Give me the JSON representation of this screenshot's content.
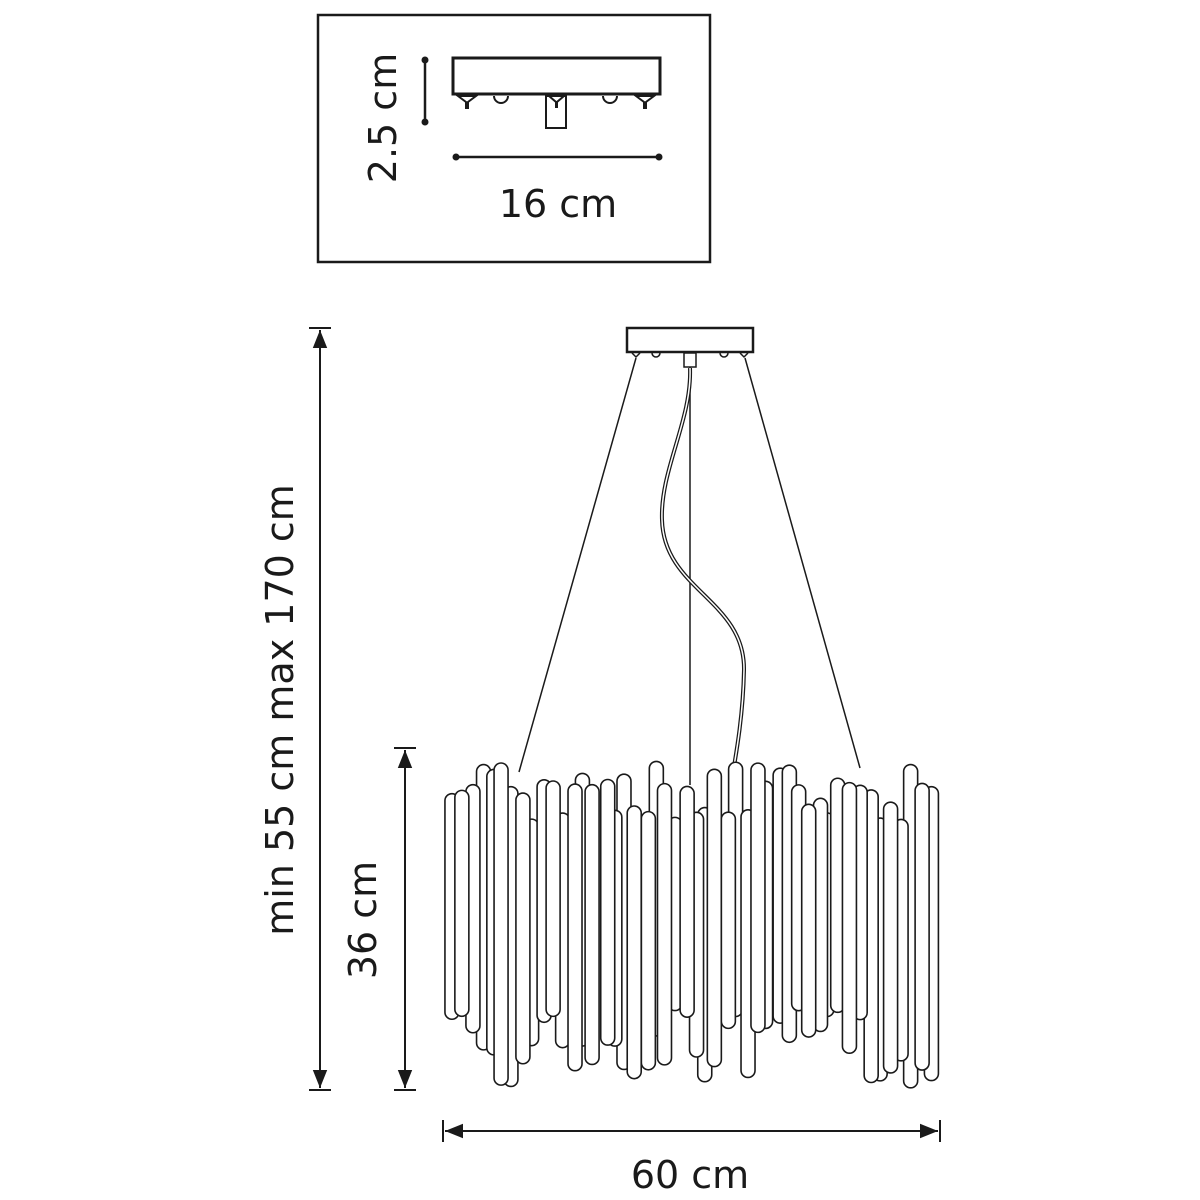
{
  "inset": {
    "height_label": "2.5 cm",
    "width_label": "16 cm"
  },
  "main": {
    "suspension_label": "min 55 cm max 170 cm",
    "body_height_label": "36 cm",
    "width_label": "60 cm"
  },
  "colors": {
    "line": "#1a1a1a",
    "background": "#ffffff"
  }
}
